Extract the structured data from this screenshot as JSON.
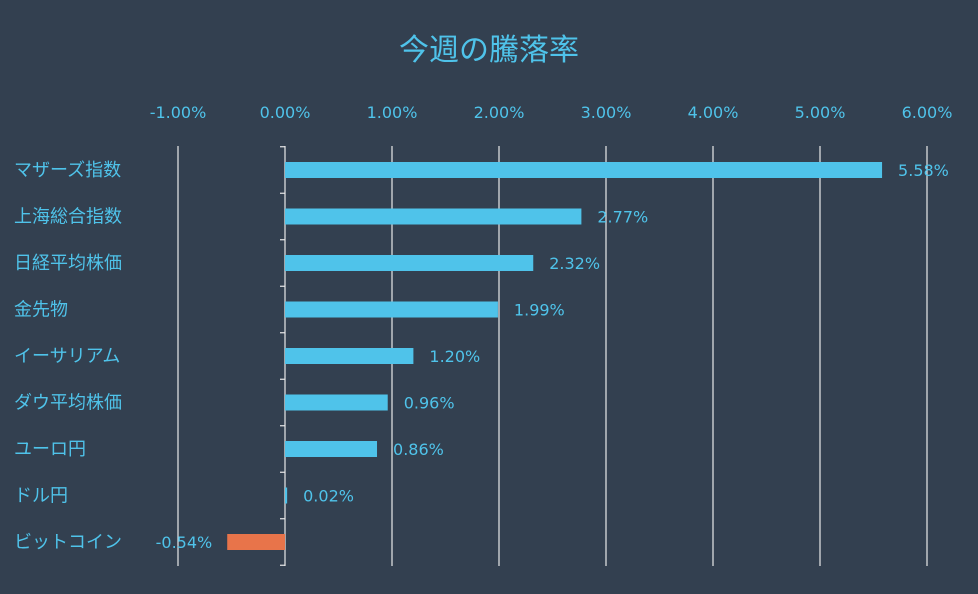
{
  "chart_data": {
    "type": "bar",
    "orientation": "horizontal",
    "title": "今週の騰落率",
    "categories": [
      "マザーズ指数",
      "上海総合指数",
      "日経平均株価",
      "金先物",
      "イーサリアム",
      "ダウ平均株価",
      "ユーロ円",
      "ドル円",
      "ビットコイン"
    ],
    "values": [
      5.58,
      2.77,
      2.32,
      1.99,
      1.2,
      0.96,
      0.86,
      0.02,
      -0.54
    ],
    "data_labels": [
      "5.58%",
      "2.77%",
      "2.32%",
      "1.99%",
      "1.20%",
      "0.96%",
      "0.86%",
      "0.02%",
      "-0.54%"
    ],
    "xlim": [
      -1,
      6
    ],
    "xticks": [
      -1,
      0,
      1,
      2,
      3,
      4,
      5,
      6
    ],
    "xtick_labels": [
      "-1.00%",
      "0.00%",
      "1.00%",
      "2.00%",
      "3.00%",
      "4.00%",
      "5.00%",
      "6.00%"
    ],
    "axis_position": "top",
    "grid": true,
    "legend": "none",
    "colors": {
      "background": "#334050",
      "positive": "#4fc3ea",
      "negative": "#e8744a",
      "text": "#4fc3ea",
      "gridline": "#e8e8e8"
    }
  }
}
